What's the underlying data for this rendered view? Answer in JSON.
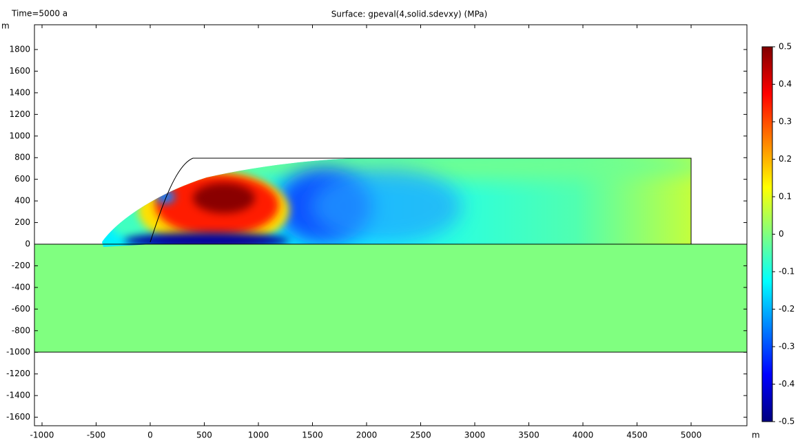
{
  "chart_data": {
    "type": "surface",
    "time_label": "Time=5000 a",
    "title": "Surface: gpeval(4,solid.sdevxy) (MPa)",
    "xlabel": "m",
    "ylabel": "m",
    "xlim": [
      -1070,
      5516
    ],
    "ylim": [
      -1679,
      2029
    ],
    "xticks": [
      -1000,
      -500,
      0,
      500,
      1000,
      1500,
      2000,
      2500,
      3000,
      3500,
      4000,
      4500,
      5000
    ],
    "yticks": [
      -1600,
      -1400,
      -1200,
      -1000,
      -800,
      -600,
      -400,
      -200,
      0,
      200,
      400,
      600,
      800,
      1000,
      1200,
      1400,
      1600,
      1800
    ],
    "clim": [
      -0.5,
      0.5
    ],
    "cticks": [
      -0.5,
      -0.4,
      -0.3,
      -0.2,
      -0.1,
      0,
      0.1,
      0.2,
      0.3,
      0.4,
      0.5
    ]
  }
}
